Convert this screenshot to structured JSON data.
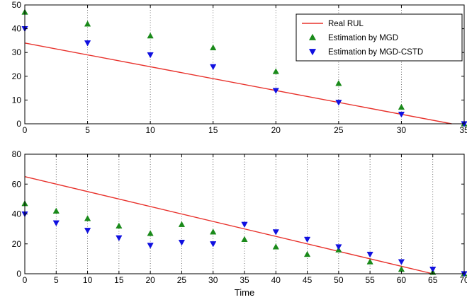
{
  "chart_data": [
    {
      "type": "scatter",
      "xlabel": "",
      "ylabel": "",
      "xlim": [
        0,
        35
      ],
      "ylim": [
        0,
        50
      ],
      "xticks": [
        "0",
        "5",
        "10",
        "15",
        "20",
        "25",
        "30",
        "35"
      ],
      "yticks": [
        "0",
        "10",
        "20",
        "30",
        "40",
        "50"
      ],
      "grid": "vertical dotted lines at data points",
      "legend_position": "top-right",
      "series": [
        {
          "name": "Real RUL",
          "kind": "line",
          "color": "#e8322c",
          "x": [
            0,
            34
          ],
          "y": [
            34,
            0
          ]
        },
        {
          "name": "Estimation by MGD",
          "kind": "marker-triangle-up",
          "color": "#1a8a1a",
          "x": [
            0,
            5,
            10,
            15,
            20,
            25,
            30,
            35
          ],
          "y": [
            47,
            42,
            37,
            32,
            22,
            17,
            7,
            0
          ]
        },
        {
          "name": "Estimation by MGD-CSTD",
          "kind": "marker-triangle-down",
          "color": "#1010e0",
          "x": [
            0,
            5,
            10,
            15,
            20,
            25,
            30,
            35
          ],
          "y": [
            40,
            34,
            29,
            24,
            14,
            9,
            4,
            0
          ]
        }
      ]
    },
    {
      "type": "scatter",
      "xlabel": "Time",
      "ylabel": "",
      "xlim": [
        0,
        70
      ],
      "ylim": [
        0,
        80
      ],
      "xticks": [
        "0",
        "5",
        "10",
        "15",
        "20",
        "25",
        "30",
        "35",
        "40",
        "45",
        "50",
        "55",
        "60",
        "65",
        "70"
      ],
      "yticks": [
        "0",
        "20",
        "40",
        "60",
        "80"
      ],
      "grid": "vertical dotted lines at data points",
      "series": [
        {
          "name": "Real RUL",
          "kind": "line",
          "color": "#e8322c",
          "x": [
            0,
            65
          ],
          "y": [
            65,
            0
          ]
        },
        {
          "name": "Estimation by MGD",
          "kind": "marker-triangle-up",
          "color": "#1a8a1a",
          "x": [
            0,
            5,
            10,
            15,
            20,
            25,
            30,
            35,
            40,
            45,
            50,
            55,
            60,
            65,
            70
          ],
          "y": [
            47,
            42,
            37,
            32,
            27,
            33,
            28,
            23,
            18,
            13,
            16,
            8,
            3,
            1,
            0
          ]
        },
        {
          "name": "Estimation by MGD-CSTD",
          "kind": "marker-triangle-down",
          "color": "#1010e0",
          "x": [
            0,
            5,
            10,
            15,
            20,
            25,
            30,
            35,
            40,
            45,
            50,
            55,
            60,
            65,
            70
          ],
          "y": [
            40,
            34,
            29,
            24,
            19,
            21,
            20,
            33,
            28,
            23,
            18,
            13,
            8,
            3,
            0
          ]
        }
      ]
    }
  ]
}
